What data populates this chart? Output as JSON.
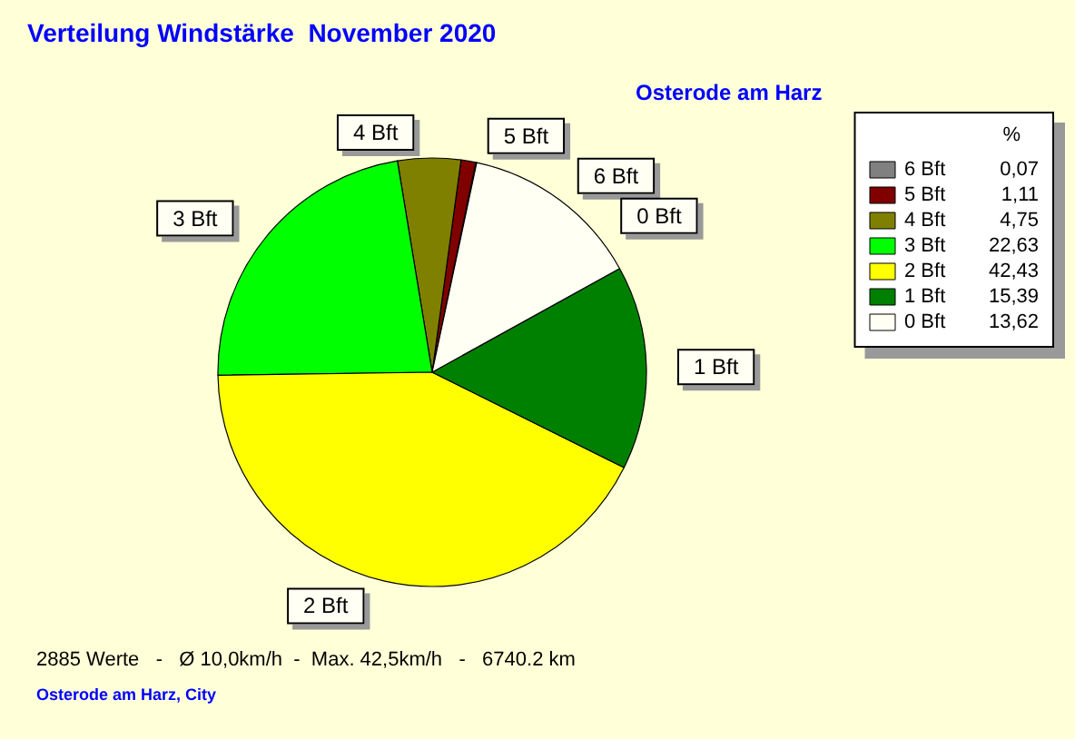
{
  "chart_data": {
    "type": "pie",
    "title": "Verteilung Windstärke  November 2020",
    "subtitle": "Osterode am Harz",
    "categories": [
      "6 Bft",
      "5 Bft",
      "4 Bft",
      "3 Bft",
      "2 Bft",
      "1 Bft",
      "0 Bft"
    ],
    "values": [
      0.07,
      1.11,
      4.75,
      22.63,
      42.43,
      15.39,
      13.62
    ],
    "value_labels": [
      "0,07",
      "1,11",
      "4,75",
      "22,63",
      "42,43",
      "15,39",
      "13,62"
    ],
    "colors": [
      "#808080",
      "#800000",
      "#808000",
      "#00ff00",
      "#ffff00",
      "#008000",
      "#fffff4"
    ],
    "legend": "right",
    "legend_title": "%",
    "annotations": [
      "2885 Werte   -   Ø 10,0km/h  -  Max. 42,5km/h   -   6740.2 km",
      "Osterode am Harz, City"
    ]
  }
}
